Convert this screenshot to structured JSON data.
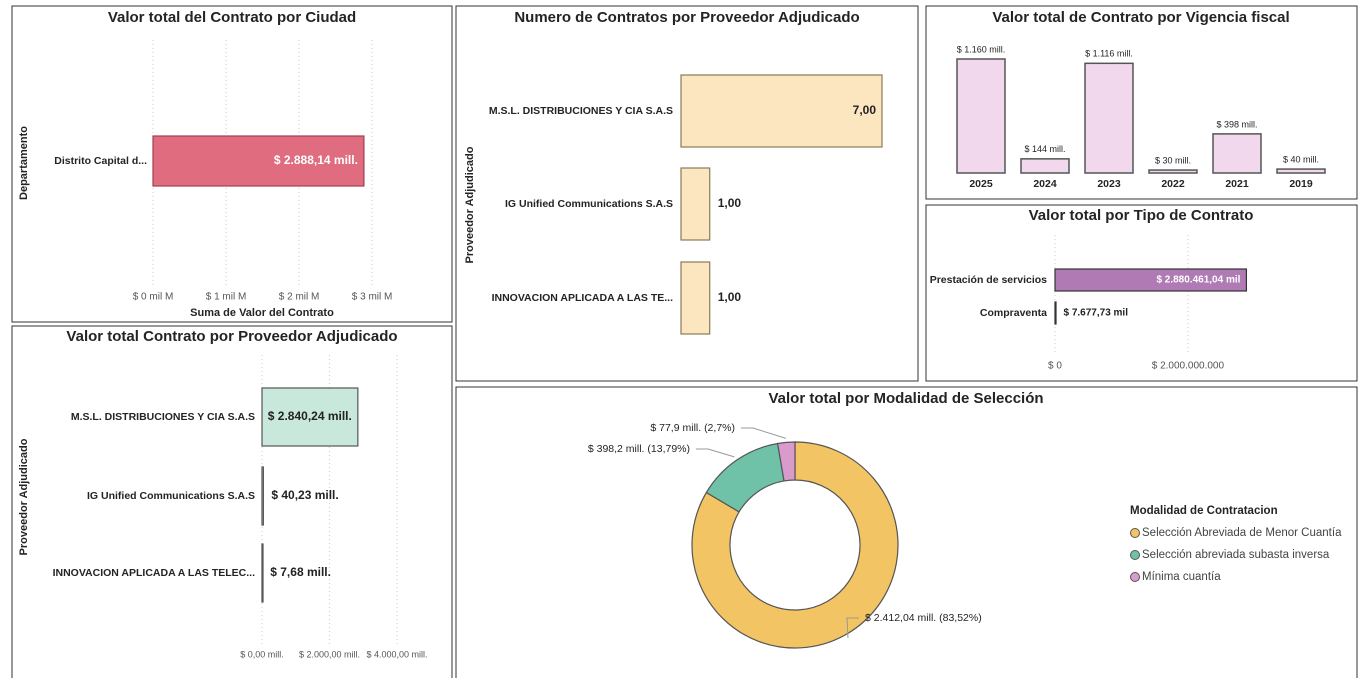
{
  "chart_data": [
    {
      "type": "bar",
      "orientation": "horizontal",
      "title": "Valor total del Contrato por Ciudad",
      "y_label": "Departamento",
      "x_label": "Suma de Valor del Contrato",
      "categories": [
        "Distrito Capital d..."
      ],
      "values": [
        2.88814
      ],
      "value_labels": [
        "$ 2.888,14 mill."
      ],
      "color": "#e06c7f",
      "xlim": [
        0,
        3.3
      ],
      "xticks": [
        {
          "value": 0,
          "label": "$ 0 mil M"
        },
        {
          "value": 1,
          "label": "$ 1 mil M"
        },
        {
          "value": 2,
          "label": "$ 2 mil M"
        },
        {
          "value": 3,
          "label": "$ 3 mil M"
        }
      ]
    },
    {
      "type": "bar",
      "orientation": "horizontal",
      "title": "Numero de Contratos por Proveedor Adjudicado",
      "y_label": "Proveedor Adjudicado",
      "categories": [
        "M.S.L. DISTRIBUCIONES Y CIA S.A.S",
        "IG Unified Communications S.A.S",
        "INNOVACION APLICADA A LAS TE..."
      ],
      "values": [
        7,
        1,
        1
      ],
      "value_labels": [
        "7,00",
        "1,00",
        "1,00"
      ],
      "color": "#fbe6bf",
      "xlim": [
        0,
        7
      ]
    },
    {
      "type": "bar",
      "orientation": "vertical",
      "title": "Valor total de Contrato por Vigencia fiscal",
      "categories": [
        "2025",
        "2024",
        "2023",
        "2022",
        "2021",
        "2019"
      ],
      "values": [
        1160,
        144,
        1116,
        30,
        398,
        40
      ],
      "value_labels": [
        "$ 1.160 mill.",
        "$ 144 mill.",
        "$ 1.116 mill.",
        "$ 30 mill.",
        "$ 398 mill.",
        "$ 40 mill."
      ],
      "color": "#f2d8ec",
      "ylim": [
        0,
        1160
      ]
    },
    {
      "type": "bar",
      "orientation": "horizontal",
      "title": "Valor total por Tipo de Contrato",
      "categories": [
        "Prestación de servicios",
        "Compraventa"
      ],
      "values": [
        2880461040,
        7677730
      ],
      "value_labels": [
        "$ 2.880.461,04 mil",
        "$ 7.677,73 mil"
      ],
      "color": "#b07bb5",
      "xlim": [
        0,
        3100000000
      ],
      "xticks": [
        {
          "value": 0,
          "label": "$ 0"
        },
        {
          "value": 2000000000,
          "label": "$ 2.000.000.000"
        }
      ]
    },
    {
      "type": "bar",
      "orientation": "horizontal",
      "title": "Valor total Contrato por Proveedor Adjudicado",
      "y_label": "Proveedor Adjudicado",
      "categories": [
        "M.S.L. DISTRIBUCIONES Y CIA S.A.S",
        "IG Unified Communications S.A.S",
        "INNOVACION APLICADA A LAS TELEC..."
      ],
      "values": [
        2840.24,
        40.23,
        7.68
      ],
      "value_labels": [
        "$ 2.840,24 mill.",
        "$ 40,23 mill.",
        "$ 7,68 mill."
      ],
      "color": "#c8e8dc",
      "xlim": [
        0,
        4000
      ],
      "xticks": [
        {
          "value": 0,
          "label": "$ 0,00 mill."
        },
        {
          "value": 2000,
          "label": "$ 2.000,00 mill."
        },
        {
          "value": 4000,
          "label": "$ 4.000,00 mill."
        }
      ]
    },
    {
      "type": "donut",
      "title": "Valor total por Modalidad de Selección",
      "legend_title": "Modalidad de Contratacion",
      "categories": [
        "Selección Abreviada de Menor Cuantía",
        "Selección abreviada subasta inversa",
        "Mínima cuantía"
      ],
      "values": [
        2412.04,
        398.2,
        77.9
      ],
      "value_labels": [
        "$ 2.412,04 mill. (83,52%)",
        "$ 398,2 mill. (13,79%)",
        "$ 77,9 mill. (2,7%)"
      ],
      "colors": [
        "#f2c464",
        "#6fc2a7",
        "#d89bcc"
      ]
    }
  ]
}
